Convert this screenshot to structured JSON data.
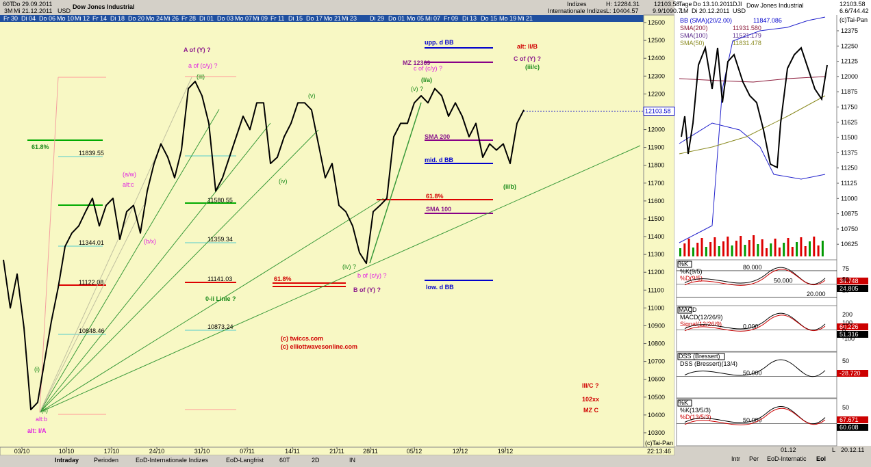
{
  "header": {
    "left1": "60T",
    "date1": "Do 29.09.2011",
    "left2": "3M",
    "date2": "Mi 21.12.2011",
    "currency": "USD",
    "title": "Dow Jones Industrial",
    "group1": "Indizes",
    "group2": "Internationale Indizes",
    "high": "H: 12284.31",
    "low": "L: 10404.57",
    "last": "12103.58",
    "ratio": "9.9/1090.7"
  },
  "date_strip": [
    "Fr 30",
    "Di 04",
    "Do 06",
    "Mo 10",
    "Mi 12",
    "Fr 14",
    "Di 18",
    "Do 20",
    "Mo 24",
    "Mi 26",
    "Fr 28",
    "Di 01",
    "Do 03",
    "Mo 07",
    "Mi 09",
    "Fr 11",
    "Di 15",
    "Do 17",
    "Mo 21",
    "Mi 23",
    "Di 29",
    "Do 01",
    "Mo 05",
    "Mi 07",
    "Fr 09",
    "Di 13",
    "Do 15",
    "Mo 19",
    "Mi 21"
  ],
  "main_chart": {
    "ylim": [
      10250,
      12650
    ],
    "yticks": [
      12600,
      12500,
      12400,
      12300,
      12200,
      12100,
      12000,
      11900,
      11800,
      11700,
      11600,
      11500,
      11400,
      11300,
      11200,
      11100,
      11000,
      10900,
      10800,
      10700,
      10600,
      10500,
      10400,
      10300
    ],
    "x_labels": [
      "03/10",
      "10/10",
      "17/10",
      "24/10",
      "31/10",
      "07/11",
      "14/11",
      "21/11",
      "28/11",
      "05/12",
      "12/12",
      "19/12"
    ],
    "close": [
      11270,
      11000,
      11190,
      10890,
      10430,
      10470,
      10700,
      10925,
      11115,
      11345,
      11420,
      11460,
      11540,
      11615,
      11460,
      11575,
      11615,
      11385,
      11540,
      11575,
      11420,
      11655,
      11810,
      11920,
      11845,
      11730,
      11885,
      12230,
      12270,
      12190,
      12035,
      11655,
      11730,
      11845,
      11960,
      12075,
      12000,
      12150,
      12150,
      11810,
      11845,
      11960,
      12035,
      12150,
      12150,
      12110,
      11920,
      11730,
      11810,
      11575,
      11540,
      11460,
      11310,
      11250,
      11540,
      11575,
      11615,
      11960,
      12035,
      12035,
      12150,
      12190,
      12150,
      12230,
      12190,
      12075,
      12150,
      12075,
      11960,
      12035,
      11845,
      11920,
      11885,
      11920,
      11810,
      12035,
      12110
    ],
    "last_price": 12103.58,
    "credit": "(c)Tai-Pan",
    "time": "22:13:46"
  },
  "annotations": [
    {
      "text": "A of (Y) ?",
      "color": "#8b1a8b"
    },
    {
      "text": "a of (c/y) ?",
      "color": "#e020e0"
    },
    {
      "text": "(iii)",
      "color": "#1a8a1a"
    },
    {
      "text": "61.8%",
      "color": "#1a8a1a"
    },
    {
      "text": "11839.55",
      "color": "#000000"
    },
    {
      "text": "(a/w)",
      "color": "#e020e0"
    },
    {
      "text": "alt:c",
      "color": "#e020e0"
    },
    {
      "text": "11580.55",
      "color": "#000000"
    },
    {
      "text": "11344.01",
      "color": "#000000"
    },
    {
      "text": "(b/x)",
      "color": "#e020e0"
    },
    {
      "text": "11359.34",
      "color": "#000000"
    },
    {
      "text": "11122.08",
      "color": "#000000"
    },
    {
      "text": "11141.03",
      "color": "#000000"
    },
    {
      "text": "(iv)",
      "color": "#1a8a1a"
    },
    {
      "text": "(v)",
      "color": "#1a8a1a"
    },
    {
      "text": "0-ii Linie ?",
      "color": "#1a8a1a"
    },
    {
      "text": "10873.24",
      "color": "#000000"
    },
    {
      "text": "10848.46",
      "color": "#000000"
    },
    {
      "text": "(i)",
      "color": "#1a8a1a"
    },
    {
      "text": "(ii)",
      "color": "#1a8a1a"
    },
    {
      "text": "alt:b",
      "color": "#e020e0"
    },
    {
      "text": "alt: I/A",
      "color": "#e020e0"
    },
    {
      "text": "(c) twiccs.com",
      "color": "#d00000"
    },
    {
      "text": "(c) elliottwavesonline.com",
      "color": "#d00000"
    },
    {
      "text": "61.8%",
      "color": "#d00000"
    },
    {
      "text": "(iv) ?",
      "color": "#1a8a1a"
    },
    {
      "text": "b of (c/y) ?",
      "color": "#e020e0"
    },
    {
      "text": "B of (Y) ?",
      "color": "#8b1a8b"
    },
    {
      "text": "upp. d BB",
      "color": "#0000cc"
    },
    {
      "text": "MZ 12369",
      "color": "#8b1a8b"
    },
    {
      "text": "c of (c/y) ?",
      "color": "#e020e0"
    },
    {
      "text": "(I/a)",
      "color": "#1a8a1a"
    },
    {
      "text": "(v) ?",
      "color": "#1a8a1a"
    },
    {
      "text": "SMA 200",
      "color": "#8b1a8b"
    },
    {
      "text": "mid. d BB",
      "color": "#0000cc"
    },
    {
      "text": "61.8%",
      "color": "#d00000"
    },
    {
      "text": "SMA 100",
      "color": "#8b1a8b"
    },
    {
      "text": "low. d BB",
      "color": "#0000cc"
    },
    {
      "text": "alt: II/B",
      "color": "#d00000"
    },
    {
      "text": "C of (Y) ?",
      "color": "#8b1a8b"
    },
    {
      "text": "(iii/c)",
      "color": "#1a8a1a"
    },
    {
      "text": "(ii/b)",
      "color": "#1a8a1a"
    },
    {
      "text": "III/C ?",
      "color": "#d00000"
    },
    {
      "text": "102xx",
      "color": "#d00000"
    },
    {
      "text": "MZ C",
      "color": "#d00000"
    }
  ],
  "bottom_tabs": [
    "Intraday",
    "Perioden",
    "EoD-Internationale Indizes",
    "EoD-Langfrist",
    "60T",
    "2D",
    "IN"
  ],
  "side_panel": {
    "header": [
      "Tage",
      "Do 13.10.2011",
      "DJI",
      "1M",
      "Di 20.12.2011",
      "USD",
      "Dow Jones Industrial",
      "12103.58",
      "6.6/744.42",
      "(c)Tai-Pan"
    ],
    "legend": [
      {
        "text": "BB (SMA)(20/2.00)",
        "value": "11847.086",
        "color": "#0000cc"
      },
      {
        "text": "SMA(200)",
        "value": "11931.580",
        "color": "#8b1a3a"
      },
      {
        "text": "SMA(100)",
        "value": "11521.179",
        "color": "#5a2a8a"
      },
      {
        "text": "SMA(50)",
        "value": "11831.478",
        "color": "#8a8a20"
      }
    ],
    "yticks": [
      12375,
      12250,
      12125,
      12000,
      11875,
      11750,
      11625,
      11500,
      11375,
      11250,
      11125,
      11000,
      10875,
      10750,
      10625
    ],
    "panels": [
      {
        "name": "%K",
        "lines": [
          "%K(9/5)",
          "%D(9/5)"
        ],
        "levels": [
          "80.000",
          "50.000",
          "20.000"
        ],
        "readouts": [
          "34.748",
          "24.805"
        ],
        "ticks": [
          75,
          50,
          25
        ]
      },
      {
        "name": "MACD",
        "lines": [
          "MACD(12/26/9)",
          "Signal(12/26/9)"
        ],
        "levels": [
          "0.000"
        ],
        "readouts": [
          "60.226",
          "51.316"
        ],
        "ticks": [
          200,
          100,
          0,
          -100
        ]
      },
      {
        "name": "DSS (Bressert)",
        "lines": [
          "DSS (Bressert)(13/4)"
        ],
        "levels": [
          "50.000"
        ],
        "readouts": [
          "-28.720"
        ],
        "ticks": [
          50
        ]
      },
      {
        "name": "%K",
        "lines": [
          "%K(13/5/3)",
          "%D(13/5/3)"
        ],
        "levels": [
          "50.000"
        ],
        "readouts": [
          "67.671",
          "60.608"
        ],
        "ticks": [
          50
        ]
      }
    ],
    "footer": [
      "01.12",
      "L",
      "20.12.11"
    ],
    "tabs": [
      "Intr",
      "Per",
      "EoD-Internatic",
      "Eol"
    ]
  }
}
